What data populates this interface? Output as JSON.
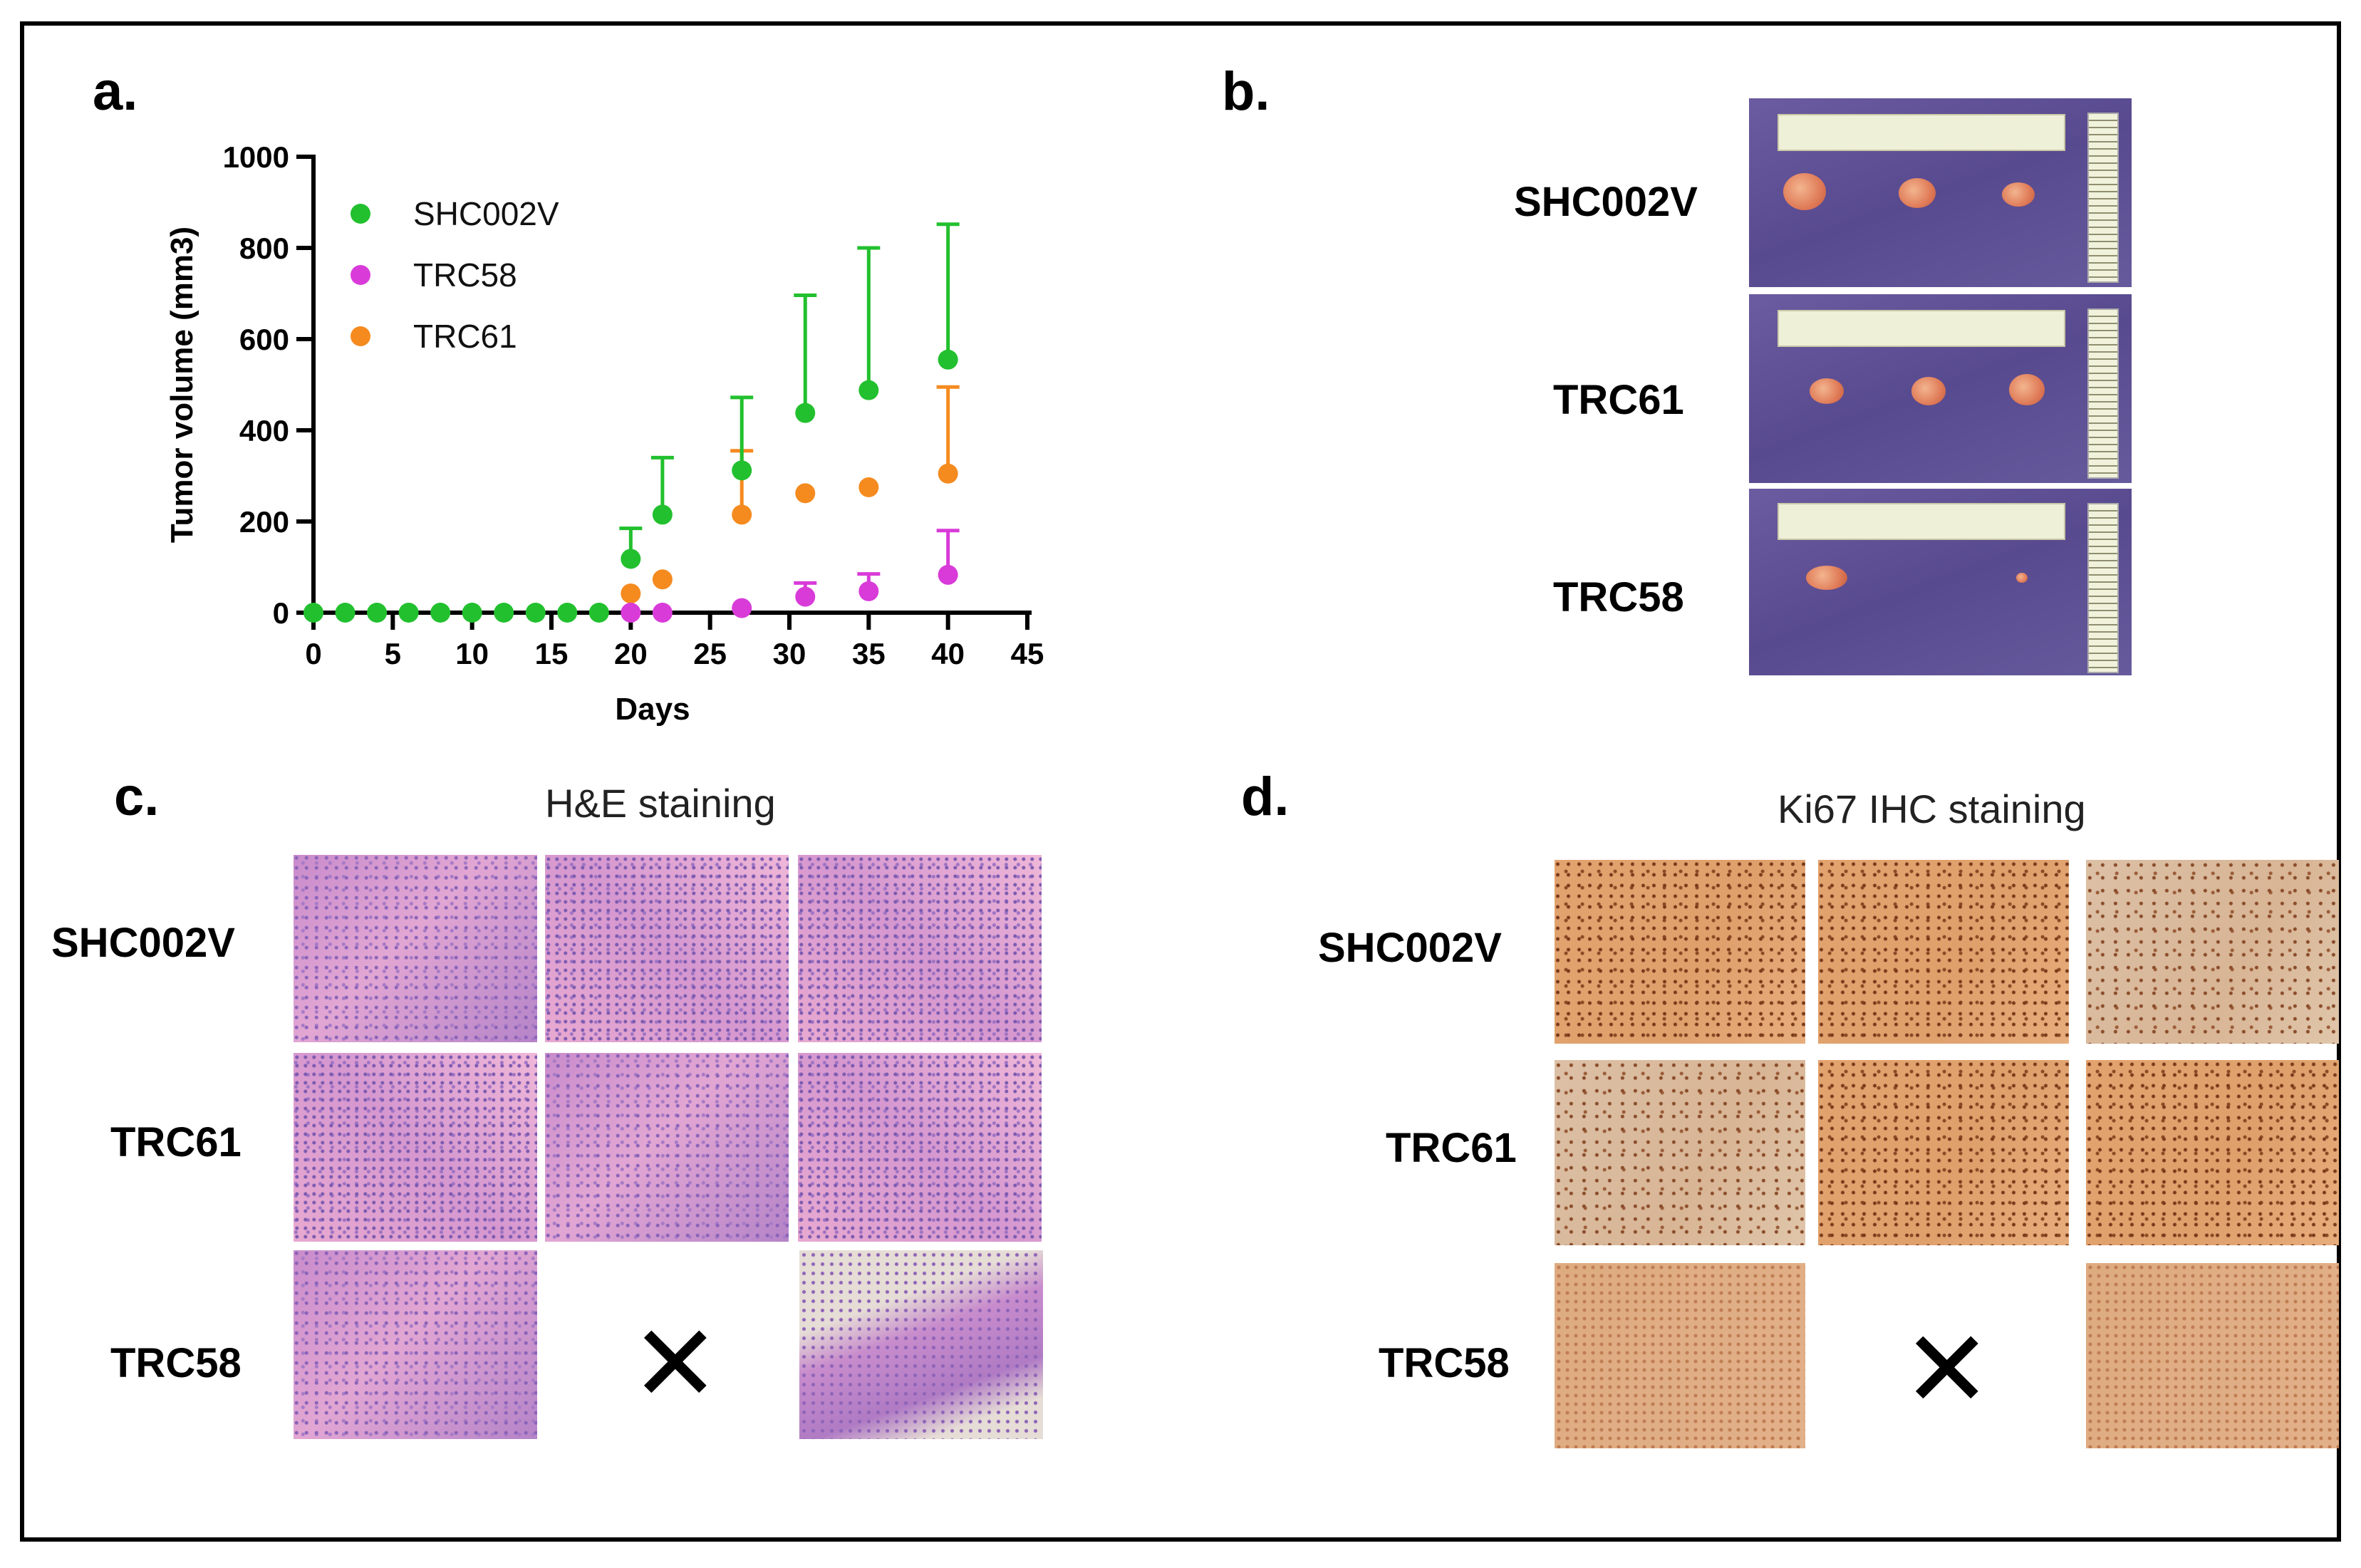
{
  "panels": {
    "a": "a.",
    "b": "b.",
    "c": "c.",
    "d": "d."
  },
  "chart_data": {
    "type": "scatter",
    "title": "",
    "xlabel": "Days",
    "ylabel": "Tumor volume (mm3)",
    "xlim": [
      0,
      45
    ],
    "ylim": [
      0,
      1000
    ],
    "xticks": [
      0,
      5,
      10,
      15,
      20,
      25,
      30,
      35,
      40,
      45
    ],
    "yticks": [
      0,
      200,
      400,
      600,
      800,
      1000
    ],
    "legend_position": "top-left",
    "series": [
      {
        "name": "SHC002V",
        "color": "#22c02e",
        "x": [
          0,
          2,
          4,
          6,
          8,
          10,
          12,
          14,
          16,
          18,
          20,
          22,
          27,
          31,
          35,
          40
        ],
        "y": [
          0,
          0,
          0,
          0,
          0,
          0,
          0,
          0,
          0,
          0,
          118,
          215,
          312,
          438,
          488,
          555
        ],
        "err_upper": [
          0,
          0,
          0,
          0,
          0,
          0,
          0,
          0,
          0,
          0,
          185,
          340,
          472,
          696,
          800,
          852
        ]
      },
      {
        "name": "TRC58",
        "color": "#d93bd9",
        "x": [
          20,
          22,
          27,
          31,
          35,
          40
        ],
        "y": [
          0,
          0,
          10,
          35,
          47,
          83
        ],
        "err_upper": [
          0,
          0,
          0,
          65,
          85,
          180
        ]
      },
      {
        "name": "TRC61",
        "color": "#f58a1f",
        "x": [
          20,
          22,
          27,
          31,
          35,
          40
        ],
        "y": [
          42,
          73,
          215,
          262,
          275,
          305
        ],
        "err_upper": [
          0,
          0,
          355,
          0,
          0,
          495
        ]
      }
    ]
  },
  "panel_b": {
    "rows": [
      "SHC002V",
      "TRC61",
      "TRC58"
    ]
  },
  "panel_c": {
    "title": "H&E staining",
    "rows": [
      "SHC002V",
      "TRC61",
      "TRC58"
    ],
    "missing_mark": "✕"
  },
  "panel_d": {
    "title": "Ki67 IHC staining",
    "rows": [
      "SHC002V",
      "TRC61",
      "TRC58"
    ],
    "missing_mark": "✕"
  }
}
